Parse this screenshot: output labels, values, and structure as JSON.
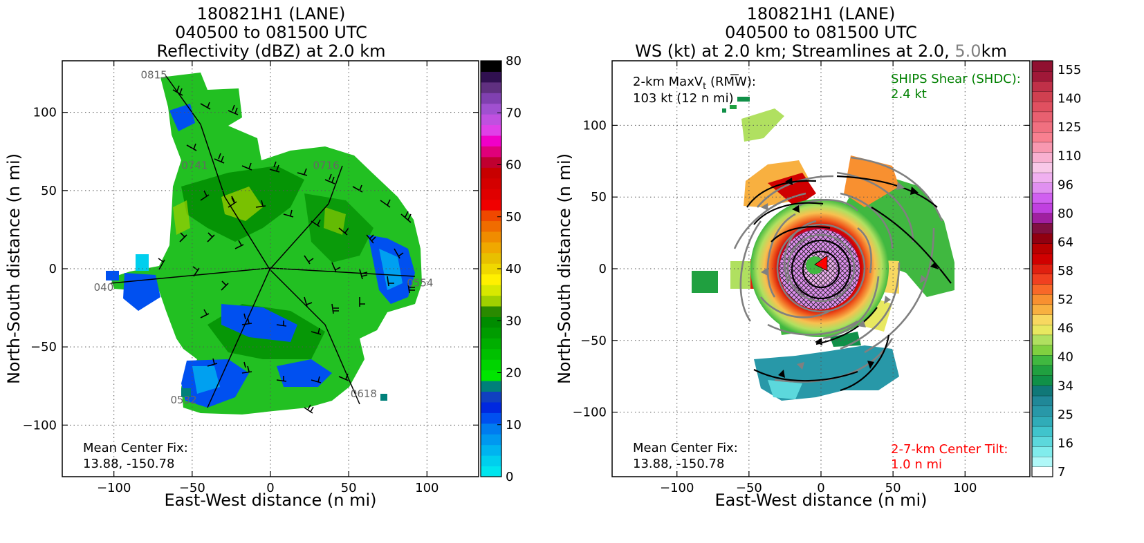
{
  "chart_data": [
    {
      "type": "heatmap",
      "title": [
        "180821H1 (LANE)",
        "040500 to 081500 UTC",
        "Reflectivity (dBZ) at 2.0 km"
      ],
      "xlabel": "East-West distance (n mi)",
      "ylabel": "North-South distance (n mi)",
      "xlim": [
        -133,
        133
      ],
      "ylim": [
        -133,
        133
      ],
      "xticks": [
        -100,
        -50,
        0,
        50,
        100
      ],
      "yticks": [
        -100,
        -50,
        0,
        50,
        100
      ],
      "xtick_labels": [
        "−100",
        "−50",
        "0",
        "50",
        "100"
      ],
      "ytick_labels": [
        "−100",
        "−50",
        "0",
        "50",
        "100"
      ],
      "grid": true,
      "annotations": {
        "mean_center_label": "Mean Center Fix:",
        "mean_center_value": "13.88, -150.78"
      },
      "flight_leg_times": [
        {
          "label": "0815",
          "x": -74,
          "y": 124
        },
        {
          "label": "0741",
          "x": -48,
          "y": 66
        },
        {
          "label": "0716",
          "x": 36,
          "y": 66
        },
        {
          "label": "040",
          "x": -104,
          "y": -12
        },
        {
          "label": "0554",
          "x": 96,
          "y": -9
        },
        {
          "label": "0532",
          "x": -55,
          "y": -84
        },
        {
          "label": "0618",
          "x": 60,
          "y": -80
        }
      ],
      "colorbar": {
        "min": 0,
        "max": 80,
        "tick_values": [
          0,
          10,
          20,
          30,
          40,
          50,
          60,
          70,
          80
        ],
        "tick_labels": [
          "0",
          "10",
          "20",
          "30",
          "40",
          "50",
          "60",
          "70",
          "80"
        ],
        "colors": [
          "#00e5ee",
          "#00cfee",
          "#00b4f0",
          "#0098f0",
          "#007cf0",
          "#0050f0",
          "#0028e0",
          "#1040c0",
          "#00807a",
          "#00e600",
          "#00d400",
          "#00c000",
          "#00ae00",
          "#009c00",
          "#008c00",
          "#2a8a00",
          "#a0d000",
          "#d8e800",
          "#fff000",
          "#f0d800",
          "#e8c000",
          "#f0a800",
          "#f08c00",
          "#f06c00",
          "#f04800",
          "#f00000",
          "#e00000",
          "#d40000",
          "#c80000",
          "#c00030",
          "#e0007a",
          "#f000c8",
          "#e040e8",
          "#c050e0",
          "#a050d0",
          "#8040b0",
          "#603080",
          "#301050",
          "#000000"
        ]
      }
    },
    {
      "type": "heatmap",
      "title": [
        "180821H1 (LANE)",
        "040500 to 081500 UTC",
        "WS (kt) at 2.0 km; Streamlines at 2.0, ",
        "5.0",
        "km"
      ],
      "xlabel": "East-West distance (n mi)",
      "ylabel": "North-South distance (n mi)",
      "xlim": [
        -145,
        145
      ],
      "ylim": [
        -145,
        145
      ],
      "xticks": [
        -100,
        -50,
        0,
        50,
        100
      ],
      "yticks": [
        -100,
        -50,
        0,
        50,
        100
      ],
      "xtick_labels": [
        "−100",
        "−50",
        "0",
        "50",
        "100"
      ],
      "ytick_labels": [
        "−100",
        "−50",
        "0",
        "50",
        "100"
      ],
      "grid": true,
      "annotations": {
        "max_vt_label": "2-km MaxV",
        "max_vt_sub": "t",
        "max_vt_rmw": " (RMW):",
        "max_vt_value": "103 kt (12 n mi)",
        "ships_label": "SHIPS Shear (SHDC):",
        "ships_value": "2.4 kt",
        "ships_color": "#008000",
        "mean_center_label": "Mean Center Fix:",
        "mean_center_value": "13.88, -150.78",
        "tilt_label": "2-7-km Center Tilt:",
        "tilt_value": "1.0 n mi",
        "tilt_color": "#ff0000",
        "streamline_colors": {
          "2.0 km": "#000000",
          "5.0 km": "#808080"
        }
      },
      "colorbar": {
        "tick_labels": [
          "7",
          "16",
          "25",
          "34",
          "40",
          "46",
          "52",
          "58",
          "64",
          "80",
          "96",
          "110",
          "125",
          "140",
          "155"
        ],
        "colors": [
          "#ffffff",
          "#b0f8f8",
          "#80ecec",
          "#5cd8dc",
          "#40c4cc",
          "#30acb8",
          "#2898a8",
          "#208898",
          "#107878",
          "#109048",
          "#20a040",
          "#40b840",
          "#80d040",
          "#b0e060",
          "#e8e860",
          "#f8d860",
          "#f8b040",
          "#f89030",
          "#f86828",
          "#f04020",
          "#e02010",
          "#d00000",
          "#b80000",
          "#900010",
          "#801040",
          "#a020a0",
          "#c040e0",
          "#d060f0",
          "#e090f0",
          "#f0b0f0",
          "#f8c8e8",
          "#f8b0d0",
          "#f898b0",
          "#f88090",
          "#f07080",
          "#e86070",
          "#e05060",
          "#d04050",
          "#c03048",
          "#a01838",
          "#901030"
        ]
      }
    }
  ]
}
